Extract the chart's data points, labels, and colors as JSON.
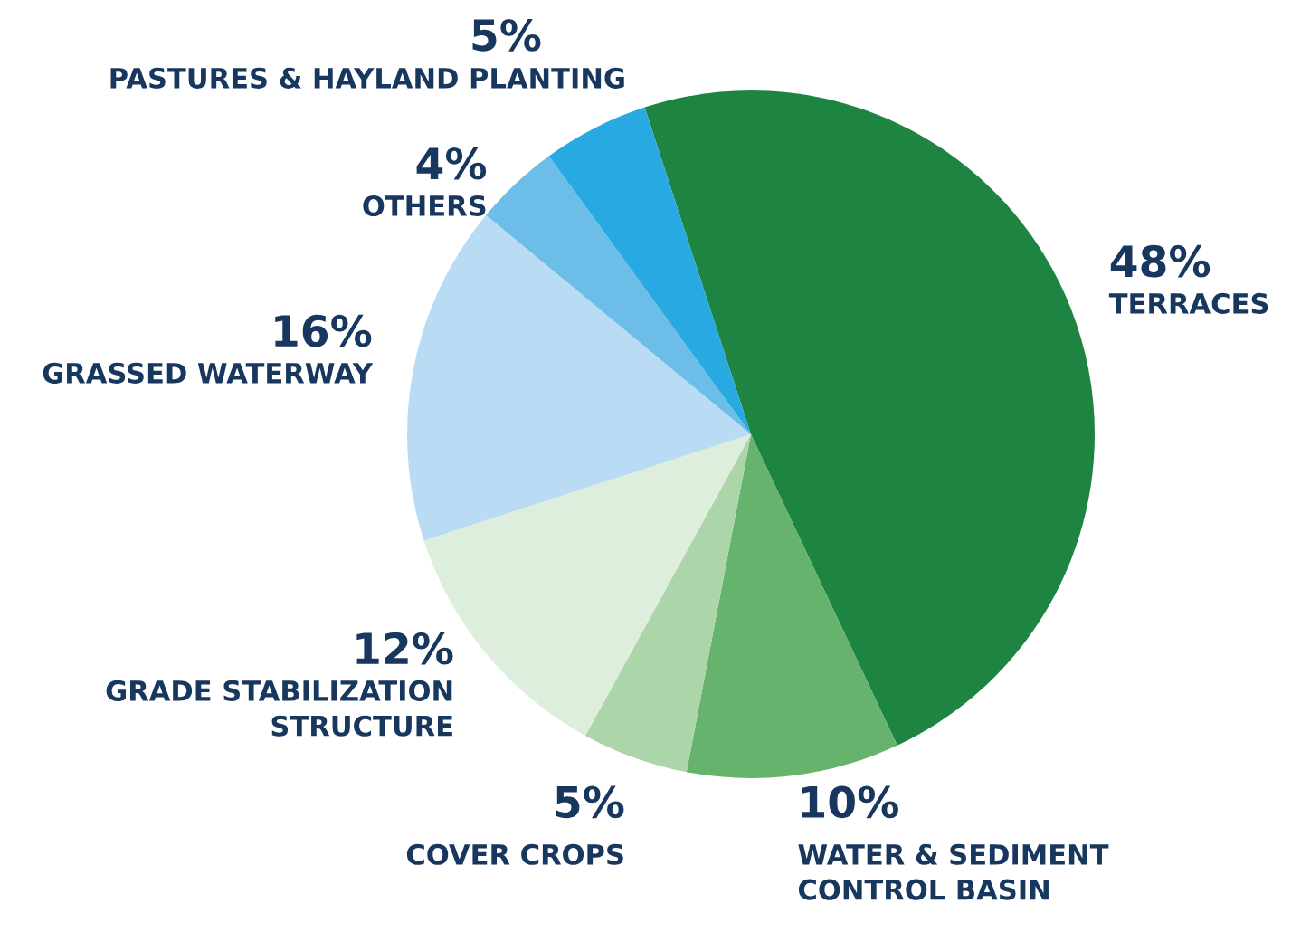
{
  "chart_data": {
    "type": "pie",
    "categories": [
      "TERRACES",
      "WATER & SEDIMENT\nCONTROL BASIN",
      "COVER CROPS",
      "GRADE STABILIZATION\nSTRUCTURE",
      "GRASSED WATERWAY",
      "OTHERS",
      "PASTURES & HAYLAND PLANTING"
    ],
    "values": [
      48,
      10,
      5,
      12,
      16,
      4,
      5
    ],
    "colors": [
      "#1e8442",
      "#66b36e",
      "#acd5aa",
      "#deeedd",
      "#b9dcf4",
      "#6cbee9",
      "#29a9e1"
    ],
    "value_labels": [
      "48%",
      "10%",
      "5%",
      "12%",
      "16%",
      "4%",
      "5%"
    ]
  }
}
